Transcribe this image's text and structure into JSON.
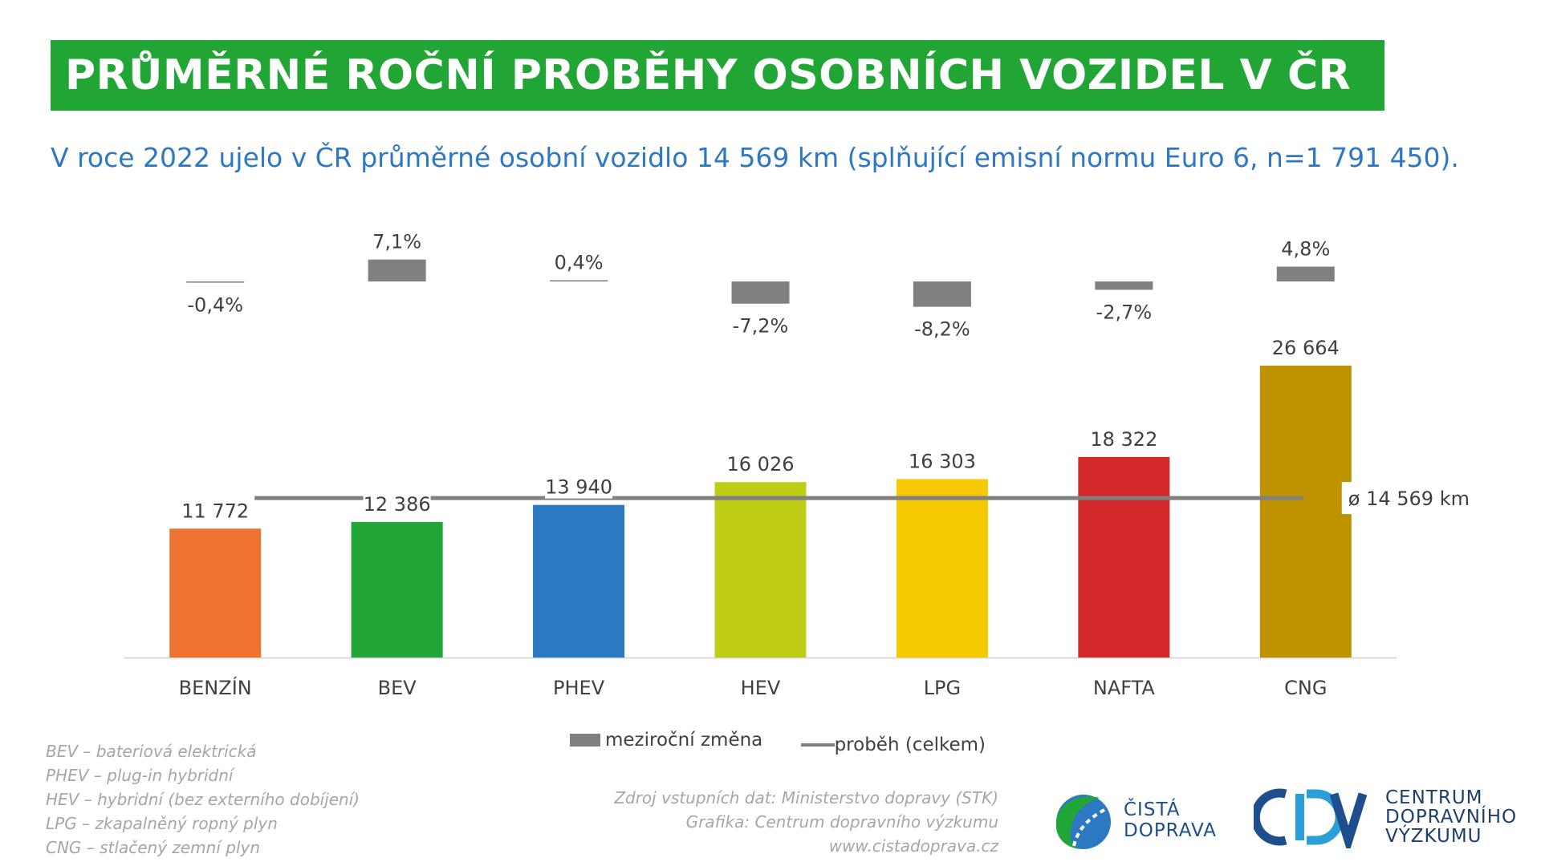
{
  "title": "PRŮMĚRNÉ ROČNÍ PROBĚHY OSOBNÍCH VOZIDEL V ČR",
  "subtitle": "V roce 2022 ujelo v ČR průměrné osobní vozidlo 14 569 km (splňující emisní normu Euro 6, n=1 791 450).",
  "chart_data": {
    "type": "bar",
    "categories": [
      "BENZÍN",
      "BEV",
      "PHEV",
      "HEV",
      "LPG",
      "NAFTA",
      "CNG"
    ],
    "series": [
      {
        "name": "proběh (celkem)",
        "values": [
          11772,
          12386,
          13940,
          16026,
          16303,
          18322,
          26664
        ],
        "labels": [
          "11 772",
          "12 386",
          "13 940",
          "16 026",
          "16 303",
          "18 322",
          "26 664"
        ],
        "colors": [
          "#ee7331",
          "#21a637",
          "#2c78c1",
          "#bfcd17",
          "#f6c900",
          "#d3282a",
          "#bf9200"
        ]
      },
      {
        "name": "meziroční změna",
        "values": [
          -0.4,
          7.1,
          0.4,
          -7.2,
          -8.2,
          -2.7,
          4.8
        ],
        "labels": [
          "-0,4%",
          "7,1%",
          "0,4%",
          "-7,2%",
          "-8,2%",
          "-2,7%",
          "4,8%"
        ],
        "color": "#808080"
      }
    ],
    "average": {
      "value": 14569,
      "label": "ø 14 569 km",
      "color": "#808080"
    },
    "ylim": [
      0,
      26664
    ],
    "legend": [
      "meziroční změna",
      "proběh (celkem)"
    ],
    "legend_position": "bottom"
  },
  "legend": {
    "change": "meziroční změna",
    "total": "proběh (celkem)"
  },
  "abbreviations": [
    "BEV – bateriová elektrická",
    "PHEV – plug-in hybridní",
    "HEV – hybridní (bez externího dobíjení)",
    "LPG – zkapalněný ropný plyn",
    "CNG – stlačený zemní plyn"
  ],
  "source": [
    "Zdroj vstupních dat: Ministerstvo dopravy (STK)",
    "Grafika: Centrum dopravního výzkumu",
    "www.cistadoprava.cz"
  ],
  "logos": {
    "cista_doprava": [
      "ČISTÁ",
      "DOPRAVA"
    ],
    "cdv": [
      "CENTRUM",
      "DOPRAVNÍHO",
      "VÝZKUMU"
    ]
  }
}
